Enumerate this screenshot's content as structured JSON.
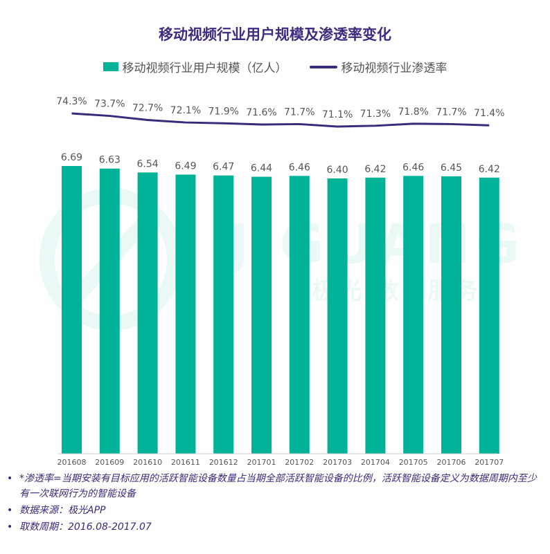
{
  "colors": {
    "bar": "#00b398",
    "line": "#3b2a7c",
    "title": "#3f2b80",
    "label": "#555555"
  },
  "watermark": {
    "brand": "JIGUANG",
    "tagline": "极光 数据服务"
  },
  "chart_data": {
    "type": "bar",
    "title": "移动视频行业用户规模及渗透率变化",
    "categories": [
      "201608",
      "201609",
      "201610",
      "201611",
      "201612",
      "201701",
      "201702",
      "201703",
      "201704",
      "201705",
      "201706",
      "201707"
    ],
    "series": [
      {
        "name": "移动视频行业用户规模（亿人）",
        "type": "bar",
        "values": [
          6.69,
          6.63,
          6.54,
          6.49,
          6.47,
          6.44,
          6.46,
          6.4,
          6.42,
          6.46,
          6.45,
          6.42
        ],
        "labels": [
          "6.69",
          "6.63",
          "6.54",
          "6.49",
          "6.47",
          "6.44",
          "6.46",
          "6.40",
          "6.42",
          "6.46",
          "6.45",
          "6.42"
        ]
      },
      {
        "name": "移动视频行业渗透率",
        "type": "line",
        "values": [
          74.3,
          73.7,
          72.7,
          72.1,
          71.9,
          71.6,
          71.7,
          71.1,
          71.3,
          71.8,
          71.7,
          71.4
        ],
        "labels": [
          "74.3%",
          "73.7%",
          "72.7%",
          "72.1%",
          "71.9%",
          "71.6%",
          "71.7%",
          "71.1%",
          "71.3%",
          "71.8%",
          "71.7%",
          "71.4%"
        ]
      }
    ],
    "legend_position": "top-center",
    "grid": false
  },
  "notes": [
    "*渗透率=当期安装有目标应用的活跃智能设备数量占当期全部活跃智能设备的比例，活跃智能设备定义为数据周期内至少有一次联网行为的智能设备",
    "数据来源：极光APP",
    "取数周期：2016.08-2017.07"
  ],
  "bullet": "•"
}
